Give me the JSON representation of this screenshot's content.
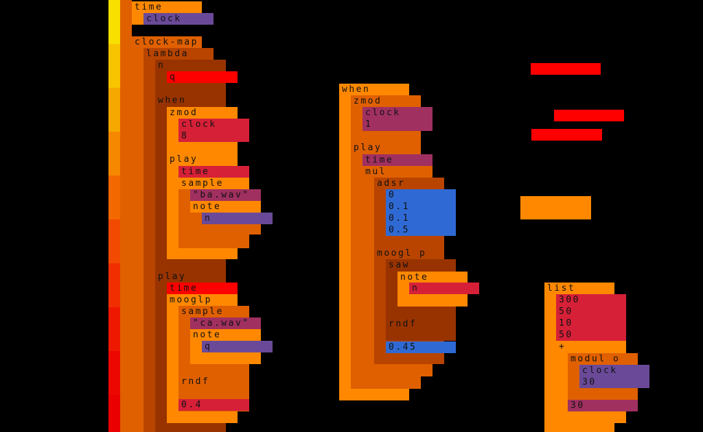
{
  "palette": {
    "yellow": "#f1e400",
    "orange": "#ff8800",
    "dark_orange": "#e06000",
    "brown": "#b84400",
    "dark_brown": "#983300",
    "crimson": "#d62038",
    "red": "#ff0000",
    "purple": "#6a4a98",
    "magenta": "#a03060",
    "blue": "#2f6ad4"
  },
  "left_expr": {
    "time": "time",
    "clock": "clock",
    "clock_map": "clock-map",
    "lambda": "lambda",
    "n": "n",
    "q": "q",
    "when": "when",
    "zmod": "zmod",
    "zmod_clock": "clock",
    "zmod_arg": "8",
    "play1": "play",
    "play1_time": "time",
    "sample1": "sample",
    "sample1_file": "\"ba.wav\"",
    "note1": "note",
    "note1_arg": "n",
    "play2": "play",
    "play2_time": "time",
    "moog2": "mooglp",
    "sample2": "sample",
    "sample2_file": "\"ca.wav\"",
    "note2": "note",
    "note2_arg": "q",
    "rndf": "rndf",
    "rndf_val": "0.4"
  },
  "middle_expr": {
    "when": "when",
    "zmod": "zmod",
    "zmod_clock": "clock",
    "zmod_arg": "1",
    "play": "play",
    "time": "time",
    "mul": "mul",
    "adsr": "adsr",
    "adsr_values": [
      "0",
      "0.1",
      "0.1",
      "0.5"
    ],
    "moog": "moogl p",
    "saw": "saw",
    "note": "note",
    "note_arg": "n",
    "rndf": "rndf",
    "rndf_val": "0.45"
  },
  "right_expr": {
    "list": "list",
    "items": [
      "300",
      "50",
      "10",
      "50"
    ],
    "plus": "+",
    "modulo": "modul o",
    "clock": "clock",
    "clock_arg": "30",
    "val": "30"
  }
}
